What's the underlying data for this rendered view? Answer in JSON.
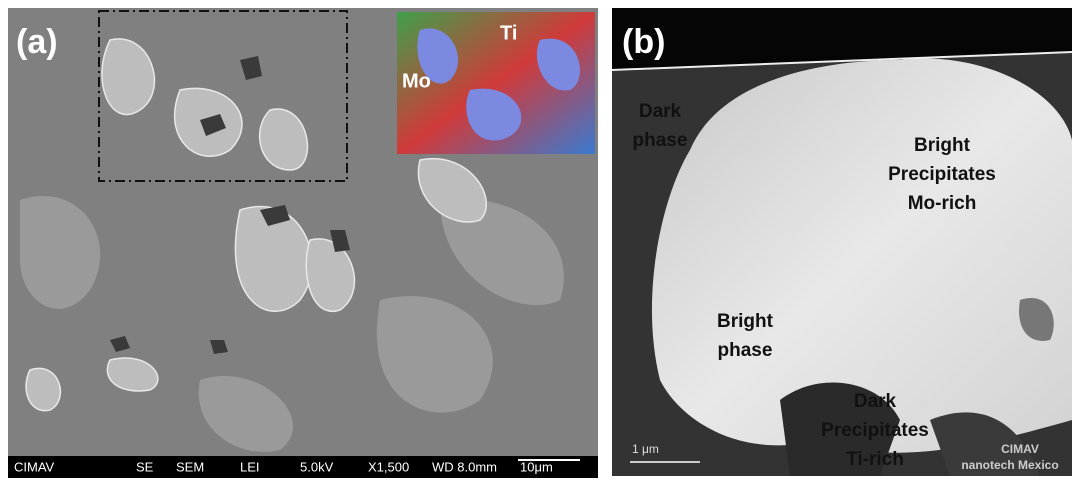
{
  "panel_a": {
    "label": "(a)",
    "inset_labels": [
      "Mo",
      "Ti"
    ],
    "info_bar": [
      "CIMAV",
      "SE",
      "SEM",
      "LEI",
      "5.0kV",
      "X1,500",
      "WD 8.0mm",
      "10μm"
    ]
  },
  "panel_b": {
    "label": "(b)",
    "annotations": [
      {
        "lines": [
          "Dark",
          "phase"
        ]
      },
      {
        "lines": [
          "Bright",
          "Precipitates",
          "Mo-rich"
        ]
      },
      {
        "lines": [
          "Bright",
          "phase"
        ]
      },
      {
        "lines": [
          "Dark",
          "Precipitates",
          "Ti-rich"
        ]
      }
    ],
    "scale_label": "1 μm",
    "watermark": [
      "CIMAV",
      "nanotech Mexico"
    ]
  }
}
